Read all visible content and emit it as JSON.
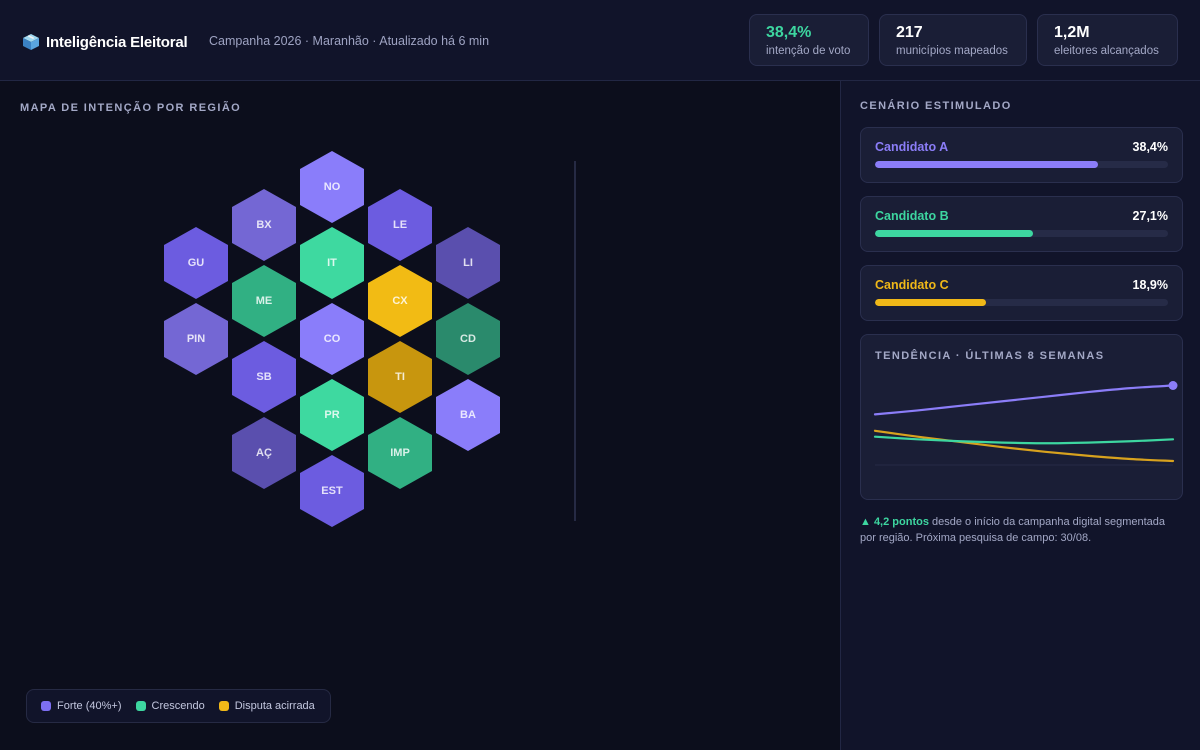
{
  "header": {
    "brand_icon": "ballot-box-icon",
    "title": "Inteligência Eleitoral",
    "subtitle": "Campanha 2026 · Maranhão · Atualizado há 6 min",
    "kpis": [
      {
        "value": "38,4%",
        "label": "intenção de voto"
      },
      {
        "value": "217",
        "label": "municípios mapeados"
      },
      {
        "value": "1,2M",
        "label": "eleitores alcançados"
      }
    ]
  },
  "map": {
    "title": "MAPA DE INTENÇÃO POR REGIÃO",
    "regions": [
      {
        "code": "NO",
        "category": "forte",
        "shade": "light"
      },
      {
        "code": "BX",
        "category": "forte",
        "shade": "muted"
      },
      {
        "code": "LE",
        "category": "forte",
        "shade": "base"
      },
      {
        "code": "GU",
        "category": "forte",
        "shade": "base"
      },
      {
        "code": "IT",
        "category": "crescendo",
        "shade": "light"
      },
      {
        "code": "LI",
        "category": "forte",
        "shade": "dim"
      },
      {
        "code": "ME",
        "category": "crescendo",
        "shade": "base"
      },
      {
        "code": "CX",
        "category": "disputa",
        "shade": "light"
      },
      {
        "code": "PIN",
        "category": "forte",
        "shade": "muted"
      },
      {
        "code": "CO",
        "category": "forte",
        "shade": "light"
      },
      {
        "code": "CD",
        "category": "crescendo",
        "shade": "dim"
      },
      {
        "code": "SB",
        "category": "forte",
        "shade": "base"
      },
      {
        "code": "TI",
        "category": "disputa",
        "shade": "dim"
      },
      {
        "code": "PR",
        "category": "crescendo",
        "shade": "light"
      },
      {
        "code": "BA",
        "category": "forte",
        "shade": "light"
      },
      {
        "code": "AÇ",
        "category": "forte",
        "shade": "dim"
      },
      {
        "code": "IMP",
        "category": "crescendo",
        "shade": "base"
      },
      {
        "code": "EST",
        "category": "forte",
        "shade": "base"
      }
    ],
    "legend": [
      {
        "label": "Forte (40%+)",
        "color": "#7d6ff2"
      },
      {
        "label": "Crescendo",
        "color": "#3dd6a0"
      },
      {
        "label": "Disputa acirrada",
        "color": "#f0b818"
      }
    ]
  },
  "scenario": {
    "title": "CENÁRIO ESTIMULADO",
    "candidates": [
      {
        "name": "Candidato A",
        "pct_label": "38,4%",
        "share": 0.762,
        "color": "#8b7df8"
      },
      {
        "name": "Candidato B",
        "pct_label": "27,1%",
        "share": 0.538,
        "color": "#3dd6a0"
      },
      {
        "name": "Candidato C",
        "pct_label": "18,9%",
        "share": 0.38,
        "color": "#f0b818"
      }
    ]
  },
  "trend": {
    "title": "TENDÊNCIA · ÚLTIMAS 8 SEMANAS",
    "chart_data": {
      "type": "line",
      "x": [
        1,
        2,
        3,
        4,
        5,
        6,
        7,
        8
      ],
      "series": [
        {
          "values": [
            34.0,
            34.6,
            35.3,
            36.0,
            36.7,
            37.4,
            38.0,
            38.4
          ],
          "color": "#8b7df8"
        },
        {
          "values": [
            30.6,
            30.2,
            29.9,
            29.7,
            29.6,
            29.7,
            29.9,
            30.2
          ],
          "color": "#3dd6a0"
        },
        {
          "values": [
            31.5,
            30.6,
            29.8,
            29.0,
            28.3,
            27.7,
            27.2,
            26.9
          ],
          "color": "#d8a21e"
        }
      ],
      "ylim": [
        24,
        40
      ]
    }
  },
  "footnote": {
    "highlight": "▲ 4,2 pontos",
    "text": " desde o início da campanha digital segmentada por região. Próxima pesquisa de campo: 30/08."
  }
}
